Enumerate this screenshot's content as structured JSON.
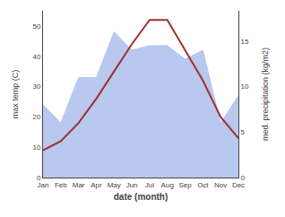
{
  "chart_data": {
    "type": "line",
    "categories": [
      "Jan",
      "Feb",
      "Mar",
      "Apr",
      "May",
      "Jun",
      "Jul",
      "Aug",
      "Sep",
      "Oct",
      "Nov",
      "Dec"
    ],
    "series": [
      {
        "type": "area",
        "axis": "y2",
        "color": "#b8c8ee",
        "values": [
          8,
          6,
          11,
          11,
          16,
          14,
          14.5,
          14.5,
          13,
          14,
          6,
          9
        ]
      },
      {
        "type": "line",
        "color": "#a03030",
        "values": [
          9,
          12,
          18,
          26,
          35,
          44,
          52,
          52,
          42,
          32,
          20,
          13
        ]
      }
    ],
    "xlabel": "date (month)",
    "ylabel": "max temp (C)",
    "y2label": "med. precipitation (kg/m2)",
    "ylim": [
      0,
      55
    ],
    "yticks": [
      0,
      10,
      20,
      30,
      40,
      50
    ],
    "y2lim": [
      0,
      18.333
    ],
    "y2ticks": [
      0,
      5,
      10,
      15
    ],
    "grid": false
  }
}
